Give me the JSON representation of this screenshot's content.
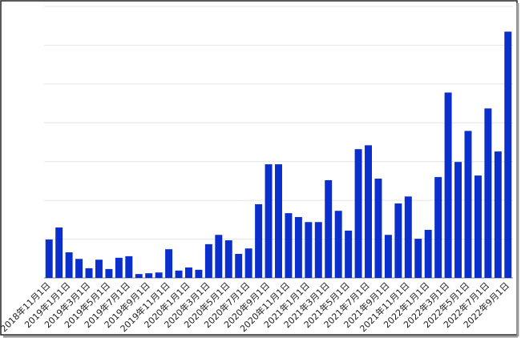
{
  "chart_data": {
    "type": "bar",
    "categories": [
      "2018年11月1日",
      null,
      "2019年1月1日",
      null,
      "2019年3月1日",
      null,
      "2019年5月1日",
      null,
      "2019年7月1日",
      null,
      "2019年9月1日",
      null,
      "2019年11月1日",
      null,
      "2020年1月1日",
      null,
      "2020年3月1日",
      null,
      "2020年5月1日",
      null,
      "2020年7月1日",
      null,
      "2020年9月1日",
      null,
      "2020年11月1日",
      null,
      "2021年1月1日",
      null,
      "2021年3月1日",
      null,
      "2021年5月1日",
      null,
      "2021年7月1日",
      null,
      "2021年9月1日",
      null,
      "2021年11月1日",
      null,
      "2022年1月1日",
      null,
      "2022年3月1日",
      null,
      "2022年5月1日",
      null,
      "2022年7月1日",
      null,
      "2022年9月1日"
    ],
    "values": [
      9.9,
      13,
      6.6,
      4.9,
      2.5,
      4.7,
      2.3,
      5.2,
      5.6,
      1,
      1.2,
      1.4,
      7.4,
      1.9,
      2.7,
      2.1,
      8.7,
      11.1,
      9.7,
      6.2,
      7.6,
      19,
      29.3,
      29.3,
      16.7,
      15.7,
      14.4,
      14.4,
      25.2,
      17.3,
      12.2,
      33.2,
      34.2,
      25.6,
      11.1,
      19.2,
      21,
      10.1,
      12.4,
      26,
      47.8,
      29.9,
      37.9,
      26.4,
      43.7,
      32.6,
      63.5
    ],
    "color": "#0a2fcc",
    "ylim": [
      0,
      70
    ],
    "yticks": [
      0,
      10,
      20,
      30,
      40,
      50,
      60,
      70
    ],
    "grid": true
  }
}
